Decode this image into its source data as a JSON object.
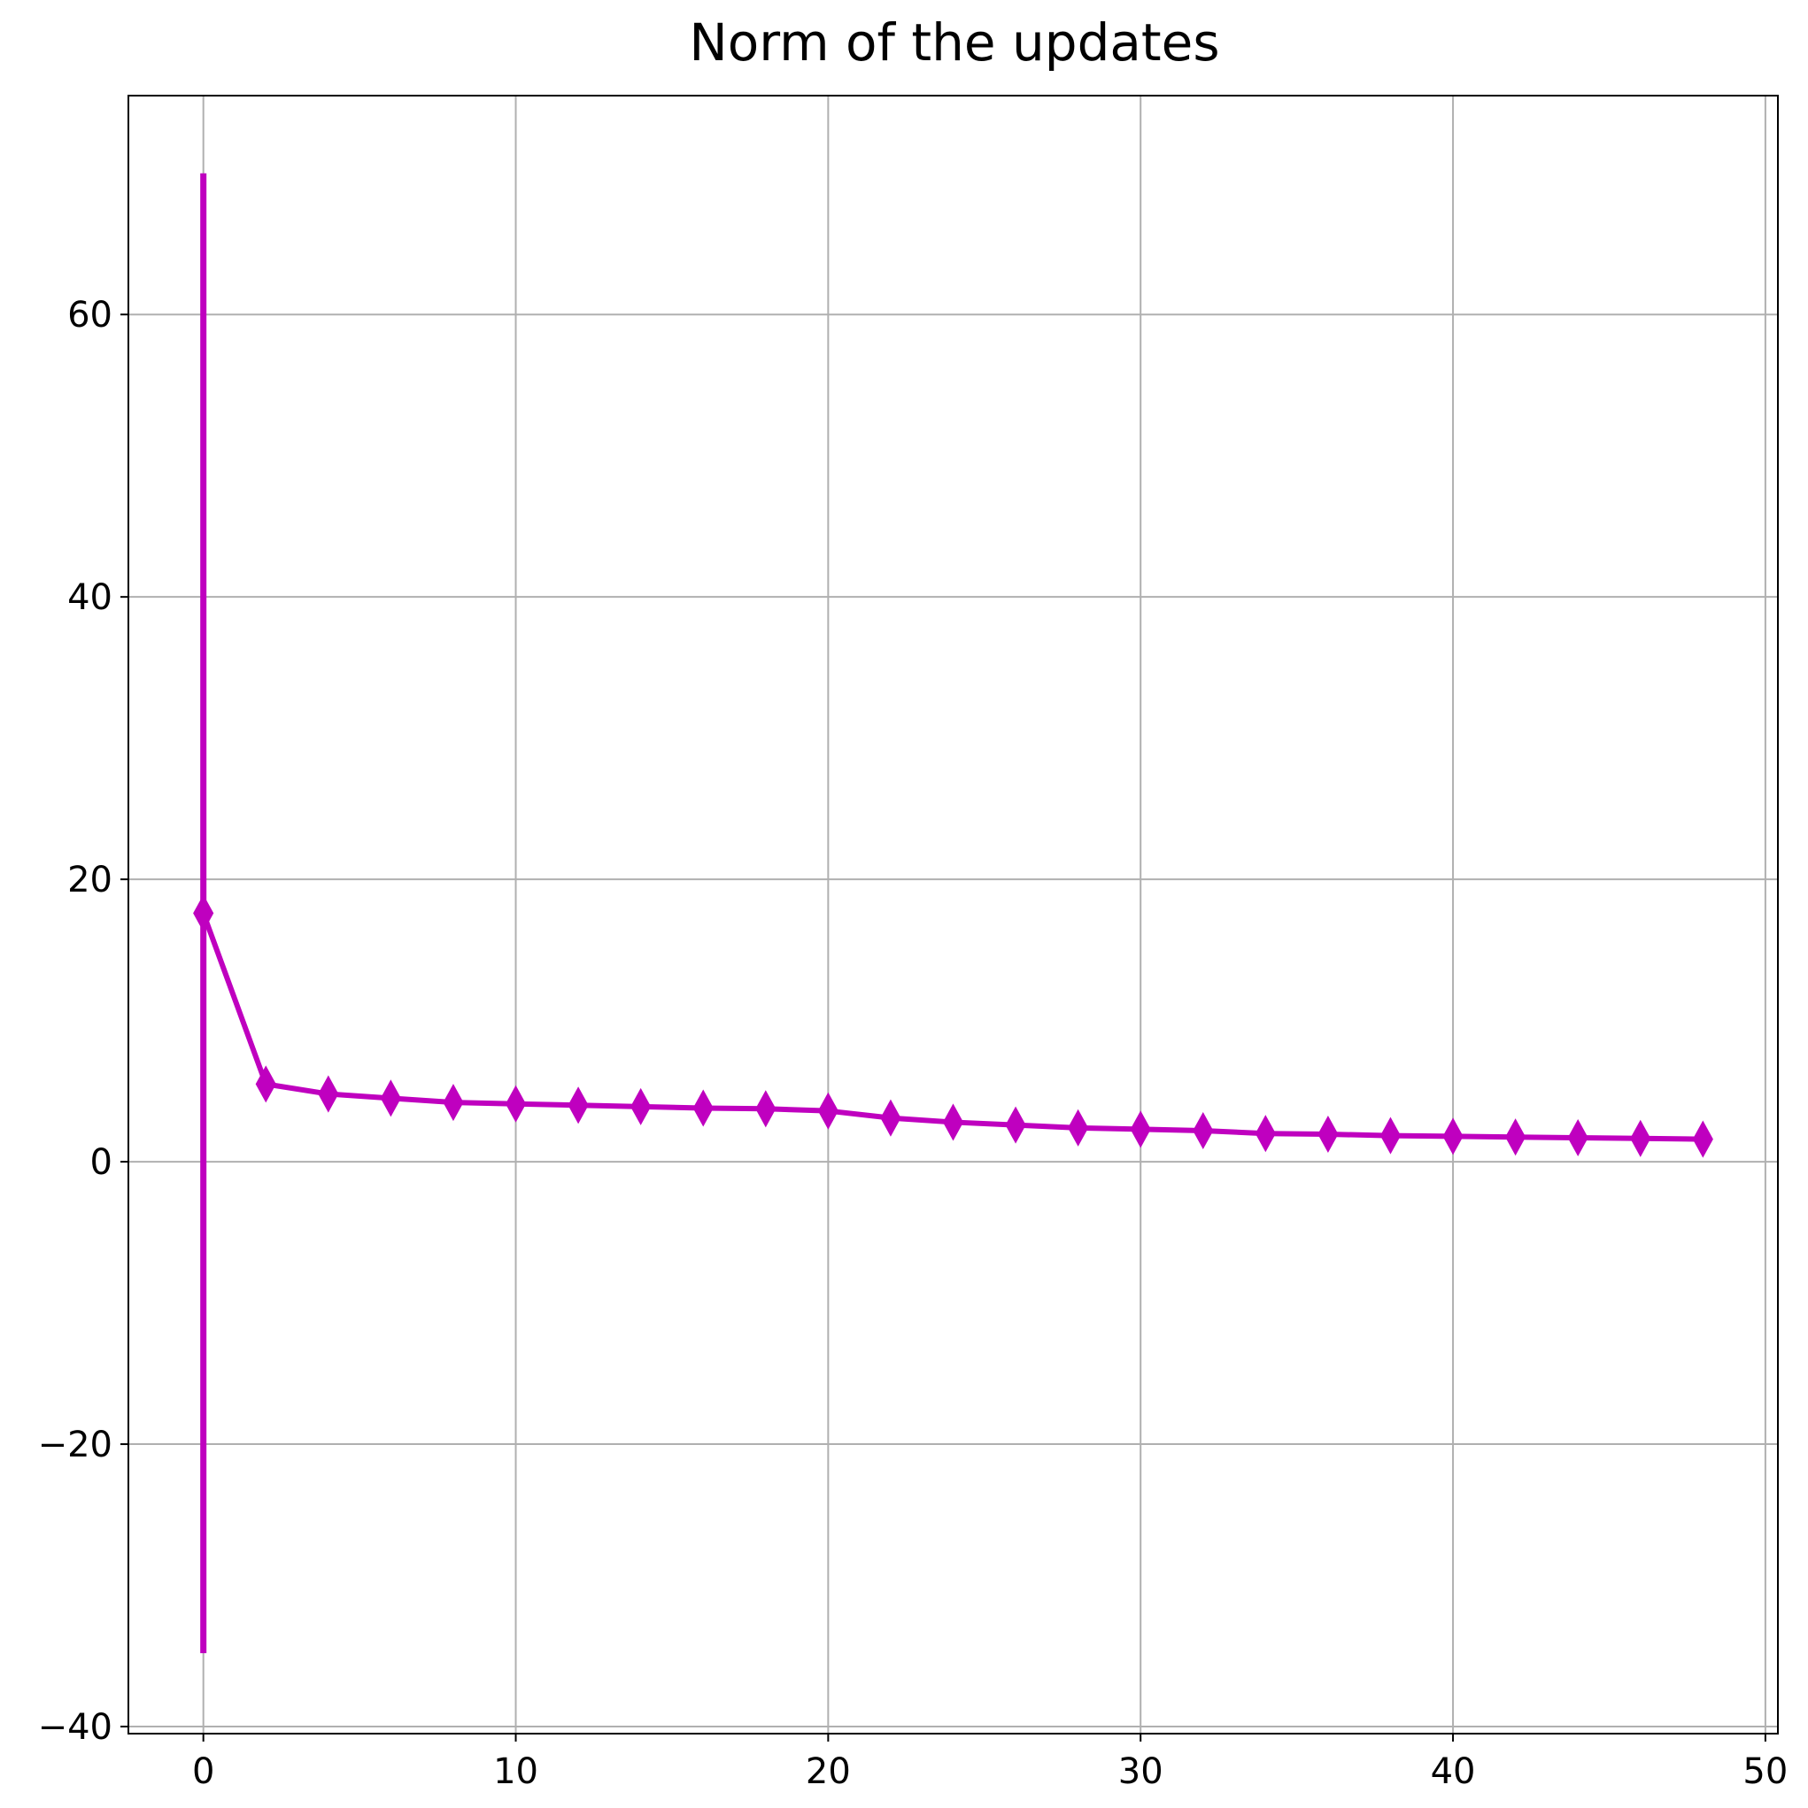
{
  "chart_data": {
    "type": "line",
    "title": "Norm of the updates",
    "xlabel": "",
    "ylabel": "",
    "xlim": [
      -2.4,
      50.4
    ],
    "ylim": [
      -40.5,
      75.5
    ],
    "xticks": [
      0,
      10,
      20,
      30,
      40,
      50
    ],
    "xtick_labels": [
      "0",
      "10",
      "20",
      "30",
      "40",
      "50"
    ],
    "yticks": [
      -40,
      -20,
      0,
      20,
      40,
      60
    ],
    "ytick_labels": [
      "−40",
      "−20",
      "0",
      "20",
      "40",
      "60"
    ],
    "grid": true,
    "legend": "none",
    "series": [
      {
        "color": "#bf00bf",
        "marker": "thin-diamond",
        "x": [
          0,
          2,
          4,
          6,
          8,
          10,
          12,
          14,
          16,
          18,
          20,
          22,
          24,
          26,
          28,
          30,
          32,
          34,
          36,
          38,
          40,
          42,
          44,
          46,
          48
        ],
        "y": [
          17.6,
          5.5,
          4.8,
          4.5,
          4.2,
          4.1,
          4.0,
          3.9,
          3.8,
          3.75,
          3.6,
          3.1,
          2.8,
          2.6,
          2.4,
          2.3,
          2.2,
          2.0,
          1.95,
          1.85,
          1.8,
          1.75,
          1.7,
          1.65,
          1.6
        ],
        "error_bar": {
          "x": 0,
          "low": -34.8,
          "high": 70.0
        }
      }
    ]
  }
}
